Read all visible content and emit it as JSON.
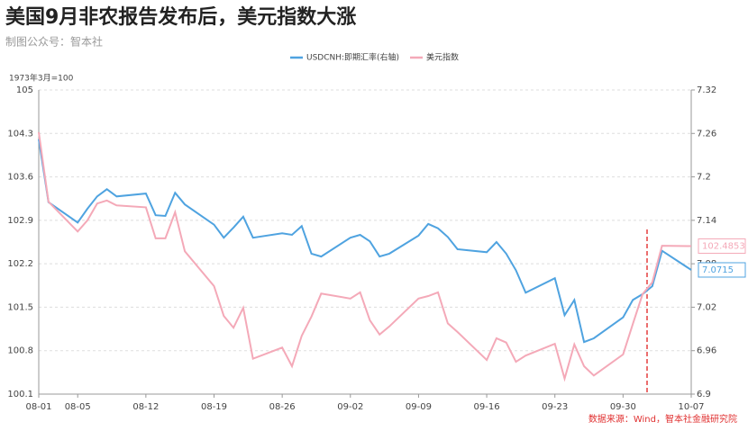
{
  "chart_data": {
    "type": "line",
    "title": "美国9月非农报告发布后，美元指数大涨",
    "subtitle": "制图公众号：智本社",
    "y_label": "1973年3月=100",
    "source": "数据来源：Wind，智本社金融研究院",
    "x": [
      "08-01",
      "08-02",
      "08-05",
      "08-06",
      "08-07",
      "08-08",
      "08-09",
      "08-12",
      "08-13",
      "08-14",
      "08-15",
      "08-16",
      "08-19",
      "08-20",
      "08-21",
      "08-22",
      "08-23",
      "08-26",
      "08-27",
      "08-28",
      "08-29",
      "08-30",
      "09-02",
      "09-03",
      "09-04",
      "09-05",
      "09-06",
      "09-09",
      "09-10",
      "09-11",
      "09-12",
      "09-13",
      "09-16",
      "09-17",
      "09-18",
      "09-19",
      "09-20",
      "09-23",
      "09-24",
      "09-25",
      "09-26",
      "09-27",
      "09-30",
      "10-01",
      "10-02",
      "10-03",
      "10-04",
      "10-07"
    ],
    "xticks": [
      "08-01",
      "08-05",
      "08-12",
      "08-19",
      "08-26",
      "09-02",
      "09-09",
      "09-16",
      "09-23",
      "09-30",
      "10-07"
    ],
    "ylim": [
      100.1,
      105
    ],
    "yticks": [
      100.1,
      100.8,
      101.5,
      102.2,
      102.9,
      103.6,
      104.3,
      105
    ],
    "y2lim": [
      6.9,
      7.32
    ],
    "y2ticks": [
      6.9,
      6.96,
      7.02,
      7.08,
      7.14,
      7.2,
      7.26,
      7.32
    ],
    "grid": true,
    "series": [
      {
        "name": "USDCNH:即期汇率(右轴)",
        "color": "#4fa3e0",
        "axis": "y2",
        "values": [
          7.252,
          7.165,
          7.137,
          7.156,
          7.173,
          7.183,
          7.173,
          7.177,
          7.147,
          7.146,
          7.178,
          7.162,
          7.134,
          7.116,
          7.13,
          7.145,
          7.116,
          7.122,
          7.12,
          7.132,
          7.094,
          7.09,
          7.116,
          7.12,
          7.111,
          7.09,
          7.094,
          7.119,
          7.135,
          7.129,
          7.117,
          7.1,
          7.096,
          7.11,
          7.094,
          7.071,
          7.04,
          7.06,
          7.009,
          7.03,
          6.972,
          6.977,
          7.006,
          7.03,
          7.038,
          7.049,
          7.098,
          7.0715
        ]
      },
      {
        "name": "美元指数",
        "color": "#f4a9b8",
        "values": [
          104.32,
          103.2,
          102.72,
          102.9,
          103.17,
          103.22,
          103.14,
          103.11,
          102.61,
          102.61,
          103.03,
          102.4,
          101.84,
          101.36,
          101.17,
          101.49,
          100.67,
          100.85,
          100.55,
          101.04,
          101.35,
          101.72,
          101.64,
          101.74,
          101.29,
          101.06,
          101.19,
          101.64,
          101.68,
          101.74,
          101.24,
          101.1,
          100.65,
          101.0,
          100.93,
          100.62,
          100.72,
          100.91,
          100.35,
          100.9,
          100.55,
          100.4,
          100.74,
          101.23,
          101.71,
          101.9,
          102.49,
          102.4853
        ]
      }
    ]
  }
}
